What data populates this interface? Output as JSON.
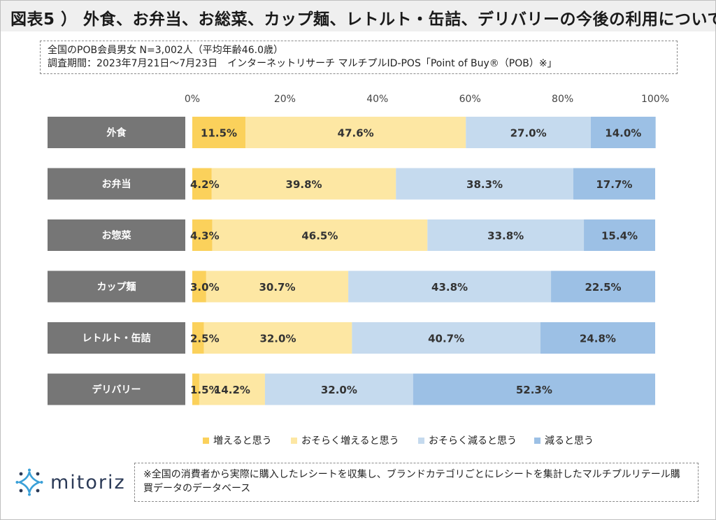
{
  "title": "図表5 ） 外食、お弁当、お総菜、カップ麺、レトルト・缶詰、デリバリーの今後の利用について",
  "info": {
    "line1": "全国のPOB会員男女 N=3,002人（平均年齢46.0歳）",
    "line2": "調査期間：2023年7月21日～7月23日　インターネットリサーチ マルチプルID-POS「Point of Buy®（POB）※」"
  },
  "logo": {
    "text": "mitoriz",
    "icon": "mitoriz-sparkle-icon",
    "color": "#2b3a57"
  },
  "note": "※全国の消費者から実際に購入したレシートを収集し、ブランドカテゴリごとにレシートを集計したマルチプルリテール購買データのデータベース",
  "chart_data": {
    "type": "bar",
    "orientation": "horizontal",
    "stacked": true,
    "percent": true,
    "x_ticks": [
      "0%",
      "20%",
      "40%",
      "60%",
      "80%",
      "100%"
    ],
    "xlim": [
      0,
      100
    ],
    "legend_position": "bottom",
    "categories": [
      "外食",
      "お弁当",
      "お惣菜",
      "カップ麺",
      "レトルト・缶詰",
      "デリバリー"
    ],
    "series": [
      {
        "name": "増えると思う",
        "color": "#FBD15B",
        "values": [
          11.5,
          4.2,
          4.3,
          3.0,
          2.5,
          1.5
        ],
        "labels": [
          "11.5%",
          "4.2%",
          "4.3%",
          "3.0%",
          "2.5%",
          "1.5%"
        ]
      },
      {
        "name": "おそらく増えると思う",
        "color": "#FDE7A3",
        "values": [
          47.6,
          39.8,
          46.5,
          30.7,
          32.0,
          14.2
        ],
        "labels": [
          "47.6%",
          "39.8%",
          "46.5%",
          "30.7%",
          "32.0%",
          "14.2%"
        ]
      },
      {
        "name": "おそらく減ると思う",
        "color": "#C5DAEE",
        "values": [
          27.0,
          38.3,
          33.8,
          43.8,
          40.7,
          32.0
        ],
        "labels": [
          "27.0%",
          "38.3%",
          "33.8%",
          "43.8%",
          "40.7%",
          "32.0%"
        ]
      },
      {
        "name": "減ると思う",
        "color": "#9CC0E5",
        "values": [
          14.0,
          17.7,
          15.4,
          22.5,
          24.8,
          52.3
        ],
        "labels": [
          "14.0%",
          "17.7%",
          "15.4%",
          "22.5%",
          "24.8%",
          "52.3%"
        ]
      }
    ],
    "category_label_bg": "#767676",
    "category_label_color": "#ffffff"
  }
}
